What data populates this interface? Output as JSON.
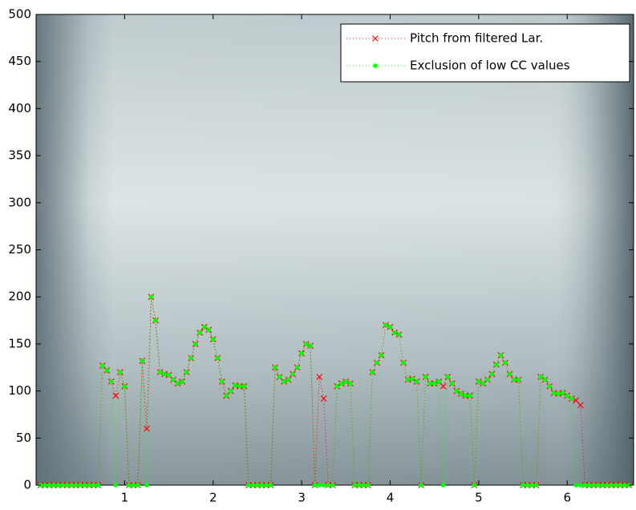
{
  "chart_data": {
    "type": "line",
    "x": [
      0.05,
      0.1,
      0.15,
      0.2,
      0.25,
      0.3,
      0.35,
      0.4,
      0.45,
      0.5,
      0.55,
      0.6,
      0.65,
      0.7,
      0.75,
      0.8,
      0.85,
      0.9,
      0.95,
      1.0,
      1.05,
      1.1,
      1.15,
      1.2,
      1.25,
      1.3,
      1.35,
      1.4,
      1.45,
      1.5,
      1.55,
      1.6,
      1.65,
      1.7,
      1.75,
      1.8,
      1.85,
      1.9,
      1.95,
      2.0,
      2.05,
      2.1,
      2.15,
      2.2,
      2.25,
      2.3,
      2.35,
      2.4,
      2.45,
      2.5,
      2.55,
      2.6,
      2.65,
      2.7,
      2.75,
      2.8,
      2.85,
      2.9,
      2.95,
      3.0,
      3.05,
      3.1,
      3.15,
      3.2,
      3.25,
      3.3,
      3.35,
      3.4,
      3.45,
      3.5,
      3.55,
      3.6,
      3.65,
      3.7,
      3.75,
      3.8,
      3.85,
      3.9,
      3.95,
      4.0,
      4.05,
      4.1,
      4.15,
      4.2,
      4.25,
      4.3,
      4.35,
      4.4,
      4.45,
      4.5,
      4.55,
      4.6,
      4.65,
      4.7,
      4.75,
      4.8,
      4.85,
      4.9,
      4.95,
      5.0,
      5.05,
      5.1,
      5.15,
      5.2,
      5.25,
      5.3,
      5.35,
      5.4,
      5.45,
      5.5,
      5.55,
      5.6,
      5.65,
      5.7,
      5.75,
      5.8,
      5.85,
      5.9,
      5.95,
      6.0,
      6.05,
      6.1,
      6.15,
      6.2,
      6.25,
      6.3,
      6.35,
      6.4,
      6.45,
      6.5,
      6.55,
      6.6,
      6.65,
      6.7
    ],
    "series": [
      {
        "name": "Pitch from filtered Lar.",
        "color": "#ff0000",
        "marker": "x",
        "values": [
          0,
          0,
          0,
          0,
          0,
          0,
          0,
          0,
          0,
          0,
          0,
          0,
          0,
          0,
          127,
          122,
          110,
          95,
          120,
          105,
          0,
          0,
          0,
          132,
          60,
          200,
          175,
          120,
          118,
          117,
          112,
          108,
          110,
          120,
          135,
          150,
          162,
          168,
          165,
          155,
          135,
          110,
          95,
          100,
          106,
          105,
          105,
          0,
          0,
          0,
          0,
          0,
          0,
          125,
          115,
          110,
          112,
          118,
          125,
          140,
          150,
          148,
          0,
          115,
          92,
          0,
          0,
          105,
          108,
          110,
          108,
          0,
          0,
          0,
          0,
          120,
          130,
          138,
          170,
          168,
          162,
          160,
          130,
          112,
          113,
          110,
          0,
          115,
          108,
          108,
          110,
          105,
          115,
          108,
          100,
          97,
          95,
          95,
          0,
          110,
          108,
          112,
          118,
          128,
          138,
          130,
          118,
          112,
          112,
          0,
          0,
          0,
          0,
          115,
          112,
          105,
          98,
          97,
          98,
          95,
          92,
          90,
          85,
          0,
          0,
          0,
          0,
          0,
          0,
          0,
          0,
          0,
          0,
          0
        ]
      },
      {
        "name": "Exclusion of low CC values",
        "color": "#00ff00",
        "marker": "o",
        "values": [
          0,
          0,
          0,
          0,
          0,
          0,
          0,
          0,
          0,
          0,
          0,
          0,
          0,
          0,
          127,
          122,
          110,
          0,
          120,
          105,
          0,
          0,
          0,
          132,
          0,
          200,
          175,
          120,
          118,
          117,
          112,
          108,
          110,
          120,
          135,
          150,
          162,
          168,
          165,
          155,
          135,
          110,
          95,
          100,
          106,
          105,
          105,
          0,
          0,
          0,
          0,
          0,
          0,
          125,
          115,
          110,
          112,
          118,
          125,
          140,
          150,
          148,
          0,
          0,
          0,
          0,
          0,
          105,
          108,
          110,
          108,
          0,
          0,
          0,
          0,
          120,
          130,
          138,
          170,
          168,
          162,
          160,
          130,
          112,
          113,
          110,
          0,
          115,
          108,
          108,
          110,
          0,
          115,
          108,
          100,
          97,
          95,
          95,
          0,
          110,
          108,
          112,
          118,
          128,
          138,
          130,
          118,
          112,
          112,
          0,
          0,
          0,
          0,
          115,
          112,
          105,
          98,
          97,
          98,
          95,
          92,
          0,
          0,
          0,
          0,
          0,
          0,
          0,
          0,
          0,
          0,
          0,
          0,
          0
        ]
      }
    ],
    "xlim": [
      0,
      6.75
    ],
    "ylim": [
      0,
      500
    ],
    "xticks": [
      1,
      2,
      3,
      4,
      5,
      6
    ],
    "yticks": [
      0,
      50,
      100,
      150,
      200,
      250,
      300,
      350,
      400,
      450,
      500
    ],
    "grid": false,
    "legend": "upper right"
  }
}
